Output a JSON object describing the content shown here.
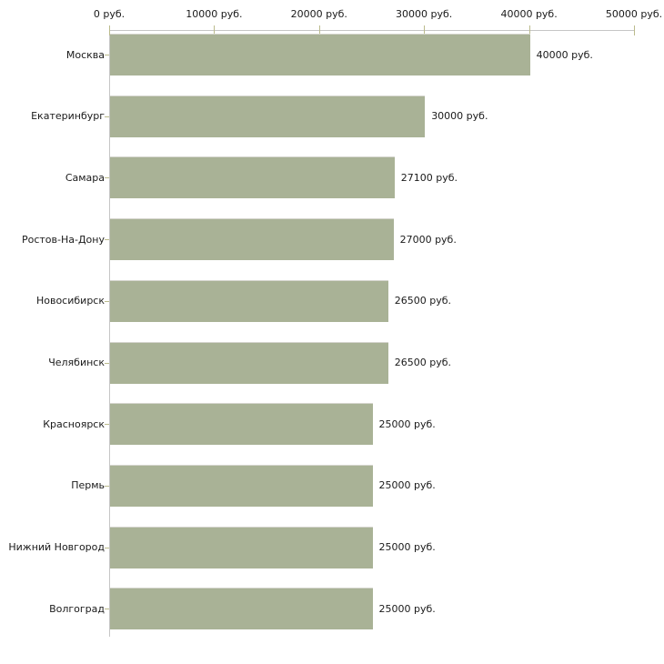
{
  "chart_data": {
    "type": "bar",
    "orientation": "horizontal",
    "title": "",
    "categories": [
      "Москва",
      "Екатеринбург",
      "Самара",
      "Ростов-На-Дону",
      "Новосибирск",
      "Челябинск",
      "Красноярск",
      "Пермь",
      "Нижний Новгород",
      "Волгоград"
    ],
    "values": [
      40000,
      30000,
      27100,
      27000,
      26500,
      26500,
      25000,
      25000,
      25000,
      25000
    ],
    "value_labels": [
      "40000 руб.",
      "30000 руб.",
      "27100 руб.",
      "27000 руб.",
      "26500 руб.",
      "26500 руб.",
      "25000 руб.",
      "25000 руб.",
      "25000 руб.",
      "25000 руб."
    ],
    "x_axis": {
      "position": "top",
      "min": 0,
      "max": 50000,
      "ticks": [
        0,
        10000,
        20000,
        30000,
        40000,
        50000
      ],
      "tick_labels": [
        "0 руб.",
        "10000 руб.",
        "20000 руб.",
        "30000 руб.",
        "40000 руб.",
        "50000 руб."
      ]
    },
    "grid": false,
    "legend": null,
    "colors": {
      "bar": "#a9b296",
      "bar_top_edge": "#d5d5ce",
      "axis_line": "#c6c6c6",
      "tick_mark": "#bbbb8c",
      "text": "#1a1a1a",
      "background": "#ffffff"
    }
  }
}
